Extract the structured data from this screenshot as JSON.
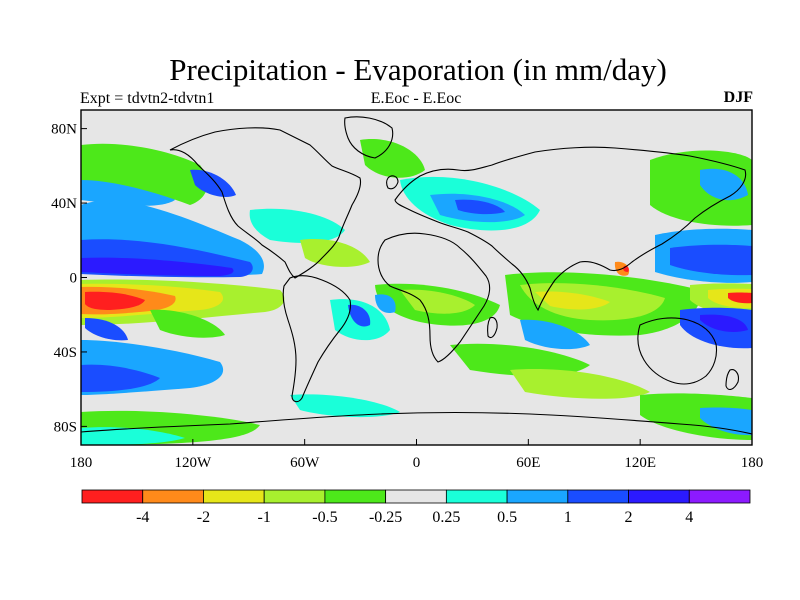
{
  "header": {
    "title": "Precipitation - Evaporation (in mm/day)",
    "expt": "Expt = tdvtn2-tdvtn1",
    "center_label": "E.Eoc - E.Eoc",
    "season": "DJF"
  },
  "map": {
    "projection": "cylindrical equidistant",
    "background_color": "#e6e6e6",
    "coastline_color": "#000000",
    "lat_ticks": [
      {
        "label": "80N",
        "lat": 80
      },
      {
        "label": "40N",
        "lat": 40
      },
      {
        "label": "0",
        "lat": 0
      },
      {
        "label": "40S",
        "lat": -40
      },
      {
        "label": "80S",
        "lat": -80
      }
    ],
    "lon_ticks": [
      {
        "label": "180",
        "lon": -180
      },
      {
        "label": "120W",
        "lon": -120
      },
      {
        "label": "60W",
        "lon": -60
      },
      {
        "label": "0",
        "lon": 0
      },
      {
        "label": "60E",
        "lon": 60
      },
      {
        "label": "120E",
        "lon": 120
      },
      {
        "label": "180",
        "lon": 180
      }
    ]
  },
  "colorbar": {
    "colors": [
      "#ff1f1f",
      "#ff8a1a",
      "#e6e619",
      "#a8f02e",
      "#4de81a",
      "#e6e6e6",
      "#1affd9",
      "#1aa6ff",
      "#1a4dff",
      "#2b1aff",
      "#8c1aff"
    ],
    "labels": [
      "-4",
      "-2",
      "-1",
      "-0.5",
      "-0.25",
      "0.25",
      "0.5",
      "1",
      "2",
      "4"
    ]
  }
}
